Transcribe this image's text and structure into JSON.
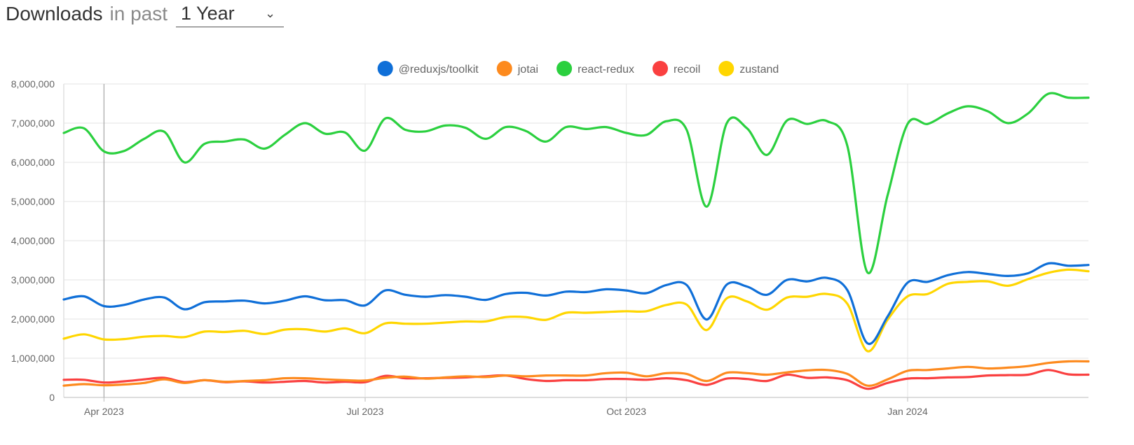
{
  "header": {
    "title": "Downloads",
    "subtitle": "in past",
    "range_selected": "1 Year",
    "chevron_icon": "chevron-down-icon"
  },
  "chart_data": {
    "type": "line",
    "title": "",
    "xlabel": "",
    "ylabel": "",
    "ylim": [
      0,
      8000000
    ],
    "y_ticks": [
      0,
      1000000,
      2000000,
      3000000,
      4000000,
      5000000,
      6000000,
      7000000,
      8000000
    ],
    "y_tick_labels": [
      "0",
      "1,000,000",
      "2,000,000",
      "3,000,000",
      "4,000,000",
      "5,000,000",
      "6,000,000",
      "7,000,000",
      "8,000,000"
    ],
    "x_range": [
      "2023-03-19",
      "2024-03-10"
    ],
    "x_ticks": [
      "2023-04-02",
      "2023-07-02",
      "2023-10-01",
      "2024-01-07"
    ],
    "x_tick_labels": [
      "Apr 2023",
      "Jul 2023",
      "Oct 2023",
      "Jan 2024"
    ],
    "grid": true,
    "legend_position": "top-center",
    "x": [
      "2023-03-19",
      "2023-03-26",
      "2023-04-02",
      "2023-04-09",
      "2023-04-16",
      "2023-04-23",
      "2023-04-30",
      "2023-05-07",
      "2023-05-14",
      "2023-05-21",
      "2023-05-28",
      "2023-06-04",
      "2023-06-11",
      "2023-06-18",
      "2023-06-25",
      "2023-07-02",
      "2023-07-09",
      "2023-07-16",
      "2023-07-23",
      "2023-07-30",
      "2023-08-06",
      "2023-08-13",
      "2023-08-20",
      "2023-08-27",
      "2023-09-03",
      "2023-09-10",
      "2023-09-17",
      "2023-09-24",
      "2023-10-01",
      "2023-10-08",
      "2023-10-15",
      "2023-10-22",
      "2023-10-29",
      "2023-11-05",
      "2023-11-12",
      "2023-11-19",
      "2023-11-26",
      "2023-12-03",
      "2023-12-10",
      "2023-12-17",
      "2023-12-24",
      "2023-12-31",
      "2024-01-07",
      "2024-01-14",
      "2024-01-21",
      "2024-01-28",
      "2024-02-04",
      "2024-02-11",
      "2024-02-18",
      "2024-02-25",
      "2024-03-03",
      "2024-03-10"
    ],
    "series": [
      {
        "name": "@reduxjs/toolkit",
        "color": "#0f6fd8",
        "values": [
          2500000,
          2580000,
          2330000,
          2360000,
          2500000,
          2550000,
          2250000,
          2430000,
          2450000,
          2470000,
          2400000,
          2470000,
          2580000,
          2480000,
          2480000,
          2350000,
          2730000,
          2620000,
          2570000,
          2610000,
          2570000,
          2490000,
          2640000,
          2670000,
          2600000,
          2700000,
          2690000,
          2760000,
          2730000,
          2660000,
          2870000,
          2870000,
          1990000,
          2880000,
          2830000,
          2620000,
          3000000,
          2960000,
          3050000,
          2740000,
          1380000,
          2060000,
          2930000,
          2950000,
          3120000,
          3200000,
          3150000,
          3100000,
          3170000,
          3420000,
          3360000,
          3380000
        ]
      },
      {
        "name": "jotai",
        "color": "#fd8a1e",
        "values": [
          300000,
          340000,
          310000,
          330000,
          370000,
          460000,
          370000,
          440000,
          400000,
          420000,
          440000,
          490000,
          490000,
          460000,
          440000,
          430000,
          500000,
          530000,
          480000,
          510000,
          540000,
          520000,
          560000,
          540000,
          560000,
          560000,
          560000,
          620000,
          630000,
          540000,
          620000,
          600000,
          420000,
          630000,
          620000,
          580000,
          640000,
          690000,
          700000,
          600000,
          300000,
          460000,
          680000,
          700000,
          740000,
          780000,
          740000,
          760000,
          800000,
          880000,
          920000,
          920000
        ]
      },
      {
        "name": "react-redux",
        "color": "#2bd03f",
        "values": [
          6750000,
          6870000,
          6280000,
          6290000,
          6600000,
          6780000,
          6000000,
          6470000,
          6530000,
          6580000,
          6350000,
          6700000,
          7000000,
          6730000,
          6760000,
          6300000,
          7120000,
          6830000,
          6790000,
          6940000,
          6880000,
          6600000,
          6900000,
          6800000,
          6530000,
          6900000,
          6850000,
          6900000,
          6750000,
          6700000,
          7050000,
          6830000,
          4870000,
          7000000,
          6870000,
          6190000,
          7070000,
          6980000,
          7050000,
          6420000,
          3190000,
          5150000,
          6980000,
          6980000,
          7250000,
          7430000,
          7300000,
          7000000,
          7250000,
          7750000,
          7650000,
          7650000
        ]
      },
      {
        "name": "recoil",
        "color": "#fa4040",
        "values": [
          450000,
          450000,
          380000,
          410000,
          460000,
          500000,
          390000,
          440000,
          390000,
          410000,
          380000,
          400000,
          420000,
          380000,
          400000,
          390000,
          550000,
          490000,
          490000,
          500000,
          510000,
          540000,
          560000,
          470000,
          420000,
          440000,
          440000,
          470000,
          470000,
          450000,
          490000,
          440000,
          320000,
          480000,
          470000,
          420000,
          580000,
          500000,
          510000,
          440000,
          220000,
          370000,
          480000,
          490000,
          510000,
          520000,
          560000,
          570000,
          580000,
          700000,
          590000,
          580000
        ]
      },
      {
        "name": "zustand",
        "color": "#ffd600",
        "values": [
          1500000,
          1610000,
          1480000,
          1490000,
          1550000,
          1570000,
          1540000,
          1680000,
          1670000,
          1700000,
          1620000,
          1730000,
          1740000,
          1680000,
          1760000,
          1640000,
          1890000,
          1880000,
          1880000,
          1910000,
          1940000,
          1940000,
          2050000,
          2050000,
          1980000,
          2160000,
          2160000,
          2180000,
          2200000,
          2200000,
          2360000,
          2370000,
          1720000,
          2530000,
          2450000,
          2240000,
          2550000,
          2570000,
          2640000,
          2390000,
          1180000,
          1980000,
          2580000,
          2640000,
          2900000,
          2950000,
          2960000,
          2850000,
          3020000,
          3180000,
          3260000,
          3220000
        ]
      }
    ]
  }
}
